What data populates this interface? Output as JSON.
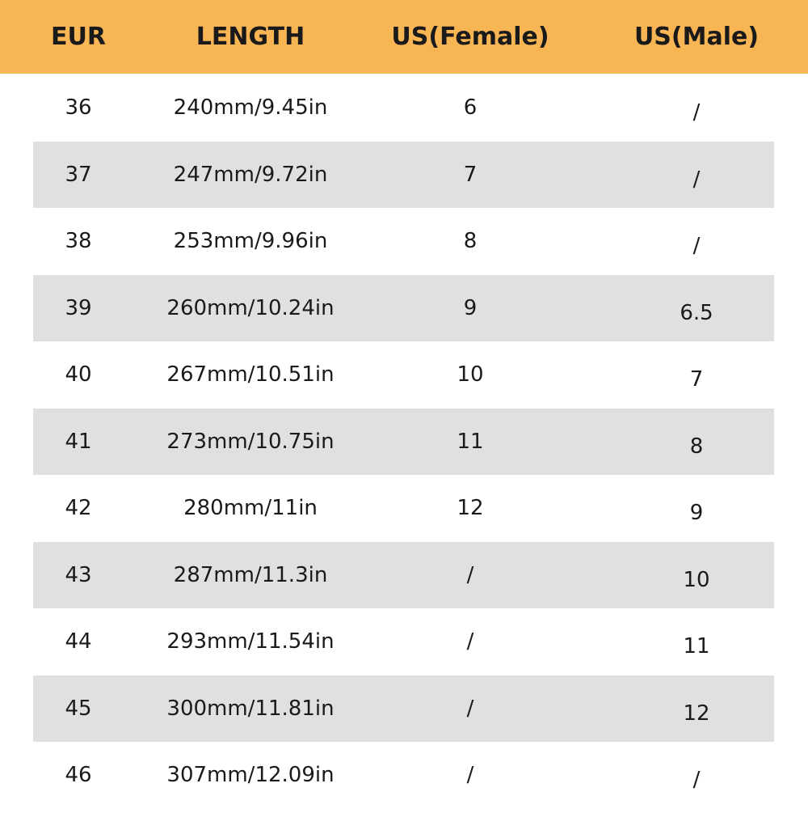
{
  "colors": {
    "header_bg": "#F8B553",
    "stripe_bg": "#E0E0E0"
  },
  "header": [
    "EUR",
    "LENGTH",
    "US(Female)",
    "US(Male)"
  ],
  "rows": [
    [
      "36",
      "240mm/9.45in",
      "6",
      "/"
    ],
    [
      "37",
      "247mm/9.72in",
      "7",
      "/"
    ],
    [
      "38",
      "253mm/9.96in",
      "8",
      "/"
    ],
    [
      "39",
      "260mm/10.24in",
      "9",
      "6.5"
    ],
    [
      "40",
      "267mm/10.51in",
      "10",
      "7"
    ],
    [
      "41",
      "273mm/10.75in",
      "11",
      "8"
    ],
    [
      "42",
      "280mm/11in",
      "12",
      "9"
    ],
    [
      "43",
      "287mm/11.3in",
      "/",
      "10"
    ],
    [
      "44",
      "293mm/11.54in",
      "/",
      "11"
    ],
    [
      "45",
      "300mm/11.81in",
      "/",
      "12"
    ],
    [
      "46",
      "307mm/12.09in",
      "/",
      "/"
    ]
  ]
}
